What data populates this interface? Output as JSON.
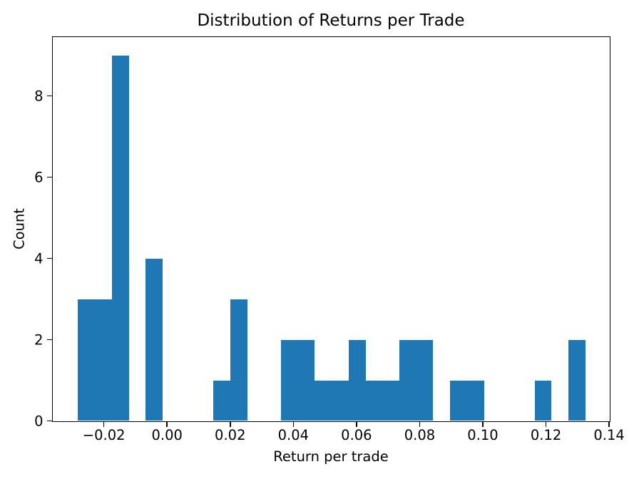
{
  "chart_data": {
    "type": "bar",
    "subtype": "histogram",
    "title": "Distribution of Returns per Trade",
    "xlabel": "Return per trade",
    "ylabel": "Count",
    "bar_color": "#1f77b4",
    "axis_color": "#000000",
    "grid": false,
    "legend": false,
    "xlim": [
      -0.0363,
      0.1402
    ],
    "ylim": [
      0,
      9.45
    ],
    "bins": {
      "start": -0.0282,
      "width": 0.005356,
      "counts": [
        3,
        3,
        9,
        0,
        4,
        0,
        0,
        0,
        1,
        3,
        0,
        0,
        2,
        2,
        1,
        1,
        2,
        1,
        1,
        2,
        2,
        0,
        1,
        1,
        0,
        0,
        0,
        1,
        0,
        2
      ]
    },
    "x_ticks": [
      {
        "value": -0.02,
        "label": "−0.02"
      },
      {
        "value": 0.0,
        "label": "0.00"
      },
      {
        "value": 0.02,
        "label": "0.02"
      },
      {
        "value": 0.04,
        "label": "0.04"
      },
      {
        "value": 0.06,
        "label": "0.06"
      },
      {
        "value": 0.08,
        "label": "0.08"
      },
      {
        "value": 0.1,
        "label": "0.10"
      },
      {
        "value": 0.12,
        "label": "0.12"
      },
      {
        "value": 0.14,
        "label": "0.14"
      }
    ],
    "y_ticks": [
      {
        "value": 0,
        "label": "0"
      },
      {
        "value": 2,
        "label": "2"
      },
      {
        "value": 4,
        "label": "4"
      },
      {
        "value": 6,
        "label": "6"
      },
      {
        "value": 8,
        "label": "8"
      }
    ]
  }
}
